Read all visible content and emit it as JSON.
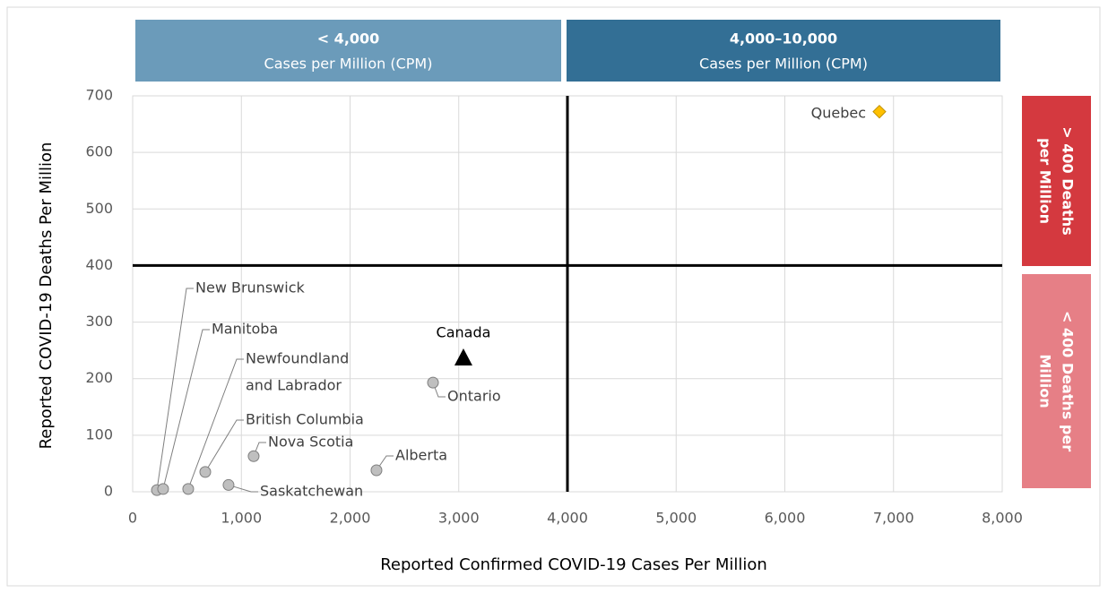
{
  "chart_data": {
    "type": "scatter",
    "x_title": "Reported Confirmed COVID-19 Cases Per Million",
    "y_title": "Reported COVID-19 Deaths Per Million",
    "xlim": [
      0,
      8000
    ],
    "ylim": [
      0,
      700
    ],
    "xticks": [
      0,
      {
        "value": 1000,
        "label": "1,000"
      },
      {
        "value": 2000,
        "label": "2,000"
      },
      {
        "value": 3000,
        "label": "3,000"
      },
      {
        "value": 4000,
        "label": "4,000"
      },
      {
        "value": 5000,
        "label": "5,000"
      },
      {
        "value": 6000,
        "label": "6,000"
      },
      {
        "value": 7000,
        "label": "7,000"
      },
      {
        "value": 8000,
        "label": "8,000"
      }
    ],
    "yticks": [
      0,
      100,
      200,
      300,
      400,
      500,
      600,
      700
    ],
    "grid": true,
    "quadrant_lines": {
      "x": 4000,
      "y": 400
    },
    "column_headers": [
      {
        "lines": [
          "< 4,000",
          "Cases per Million (CPM)"
        ],
        "color": "#6b9bba"
      },
      {
        "lines": [
          "4,000–10,000",
          "Cases per Million (CPM)"
        ],
        "color": "#336f95"
      }
    ],
    "row_headers": [
      {
        "lines": [
          "> 400 Deaths",
          "per Million"
        ],
        "color": "#d4393f"
      },
      {
        "lines": [
          "< 400 Deaths per",
          "Million"
        ],
        "color": "#e67f86"
      }
    ],
    "points": [
      {
        "label": [
          "New Brunswick"
        ],
        "x": 223,
        "y": 3,
        "marker": "circle",
        "color": "#bfbfbf"
      },
      {
        "label": [
          "Manitoba"
        ],
        "x": 280,
        "y": 5,
        "marker": "circle",
        "color": "#bfbfbf"
      },
      {
        "label": [
          "Newfoundland",
          "and Labrador"
        ],
        "x": 511,
        "y": 5,
        "marker": "circle",
        "color": "#bfbfbf"
      },
      {
        "label": [
          "British Columbia"
        ],
        "x": 668,
        "y": 35,
        "marker": "circle",
        "color": "#bfbfbf"
      },
      {
        "label": [
          "Saskatchewan"
        ],
        "x": 882,
        "y": 12,
        "marker": "circle",
        "color": "#bfbfbf"
      },
      {
        "label": [
          "Nova Scotia"
        ],
        "x": 1113,
        "y": 63,
        "marker": "circle",
        "color": "#bfbfbf"
      },
      {
        "label": [
          "Alberta"
        ],
        "x": 2243,
        "y": 38,
        "marker": "circle",
        "color": "#bfbfbf"
      },
      {
        "label": [
          "Ontario"
        ],
        "x": 2763,
        "y": 193,
        "marker": "circle",
        "color": "#bfbfbf"
      },
      {
        "label": [
          "Canada"
        ],
        "x": 3043,
        "y": 236,
        "marker": "triangle",
        "color": "#000000"
      },
      {
        "label": [
          "Quebec"
        ],
        "x": 6870,
        "y": 672,
        "marker": "diamond",
        "color": "#ffc000"
      }
    ]
  }
}
